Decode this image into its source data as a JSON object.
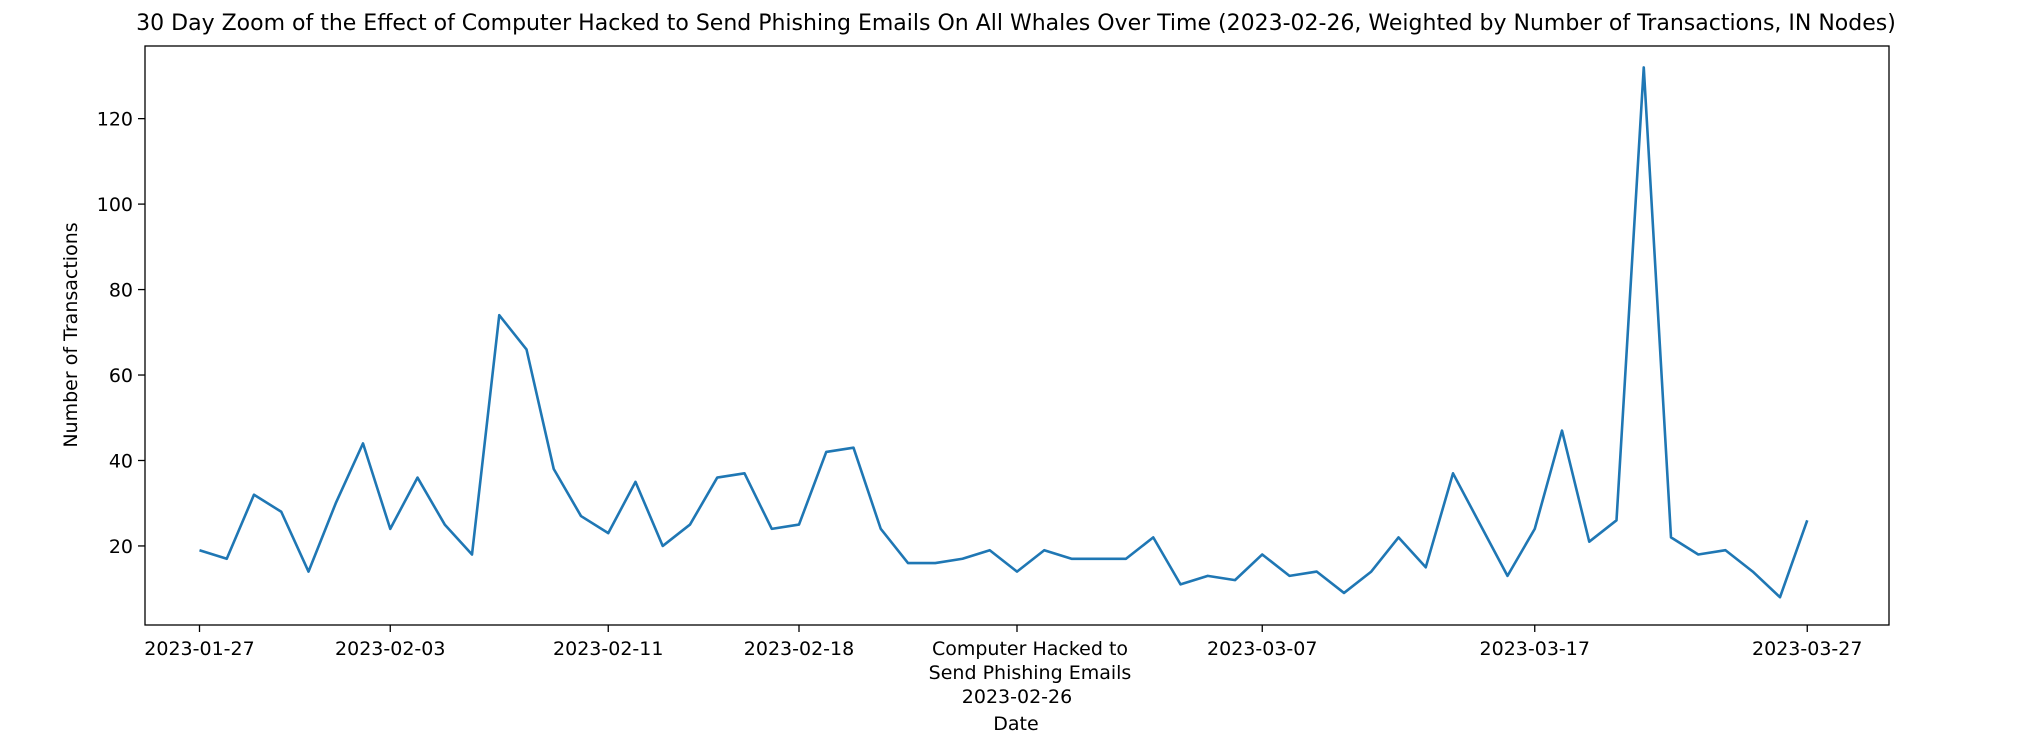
{
  "chart_data": {
    "type": "line",
    "title": "30 Day Zoom of the Effect of Computer Hacked to Send Phishing Emails On All Whales Over Time (2023-02-26, Weighted by Number of Transactions, IN Nodes)",
    "xlabel": "Date",
    "ylabel": "Number of Transactions",
    "x_start": "2023-01-27",
    "x_end": "2023-03-27",
    "xlim": [
      "2023-01-25",
      "2023-03-30"
    ],
    "ylim": [
      1.5,
      137
    ],
    "grid": false,
    "line_color": "#1f77b4",
    "xticks": [
      {
        "date": "2023-01-27",
        "label": "2023-01-27"
      },
      {
        "date": "2023-02-03",
        "label": "2023-02-03"
      },
      {
        "date": "2023-02-11",
        "label": "2023-02-11"
      },
      {
        "date": "2023-02-18",
        "label": "2023-02-18"
      },
      {
        "date": "2023-02-26",
        "label": "2023-02-26"
      },
      {
        "date": "2023-03-07",
        "label": "2023-03-07"
      },
      {
        "date": "2023-03-17",
        "label": "2023-03-17"
      },
      {
        "date": "2023-03-27",
        "label": "2023-03-27"
      }
    ],
    "yticks": [
      20,
      40,
      60,
      80,
      100,
      120
    ],
    "annotation": {
      "date": "2023-02-26",
      "lines": [
        "Computer Hacked to",
        "Send Phishing Emails"
      ]
    },
    "dates": [
      "2023-01-27",
      "2023-01-28",
      "2023-01-29",
      "2023-01-30",
      "2023-01-31",
      "2023-02-01",
      "2023-02-02",
      "2023-02-03",
      "2023-02-04",
      "2023-02-05",
      "2023-02-06",
      "2023-02-07",
      "2023-02-08",
      "2023-02-09",
      "2023-02-10",
      "2023-02-11",
      "2023-02-12",
      "2023-02-13",
      "2023-02-14",
      "2023-02-15",
      "2023-02-16",
      "2023-02-17",
      "2023-02-18",
      "2023-02-19",
      "2023-02-20",
      "2023-02-21",
      "2023-02-22",
      "2023-02-23",
      "2023-02-24",
      "2023-02-25",
      "2023-02-26",
      "2023-02-27",
      "2023-02-28",
      "2023-03-01",
      "2023-03-02",
      "2023-03-03",
      "2023-03-04",
      "2023-03-05",
      "2023-03-06",
      "2023-03-07",
      "2023-03-08",
      "2023-03-09",
      "2023-03-10",
      "2023-03-11",
      "2023-03-12",
      "2023-03-13",
      "2023-03-14",
      "2023-03-15",
      "2023-03-16",
      "2023-03-17",
      "2023-03-18",
      "2023-03-19",
      "2023-03-20",
      "2023-03-21",
      "2023-03-22",
      "2023-03-23",
      "2023-03-24",
      "2023-03-25",
      "2023-03-26",
      "2023-03-27"
    ],
    "values": [
      19,
      17,
      32,
      28,
      14,
      30,
      44,
      24,
      36,
      25,
      18,
      74,
      66,
      38,
      27,
      23,
      35,
      20,
      25,
      36,
      37,
      24,
      25,
      42,
      43,
      24,
      16,
      16,
      17,
      19,
      14,
      19,
      17,
      17,
      17,
      22,
      11,
      13,
      12,
      18,
      13,
      14,
      9,
      14,
      22,
      15,
      37,
      25,
      13,
      24,
      47,
      21,
      26,
      132,
      22,
      18,
      19,
      14,
      8,
      26
    ]
  }
}
